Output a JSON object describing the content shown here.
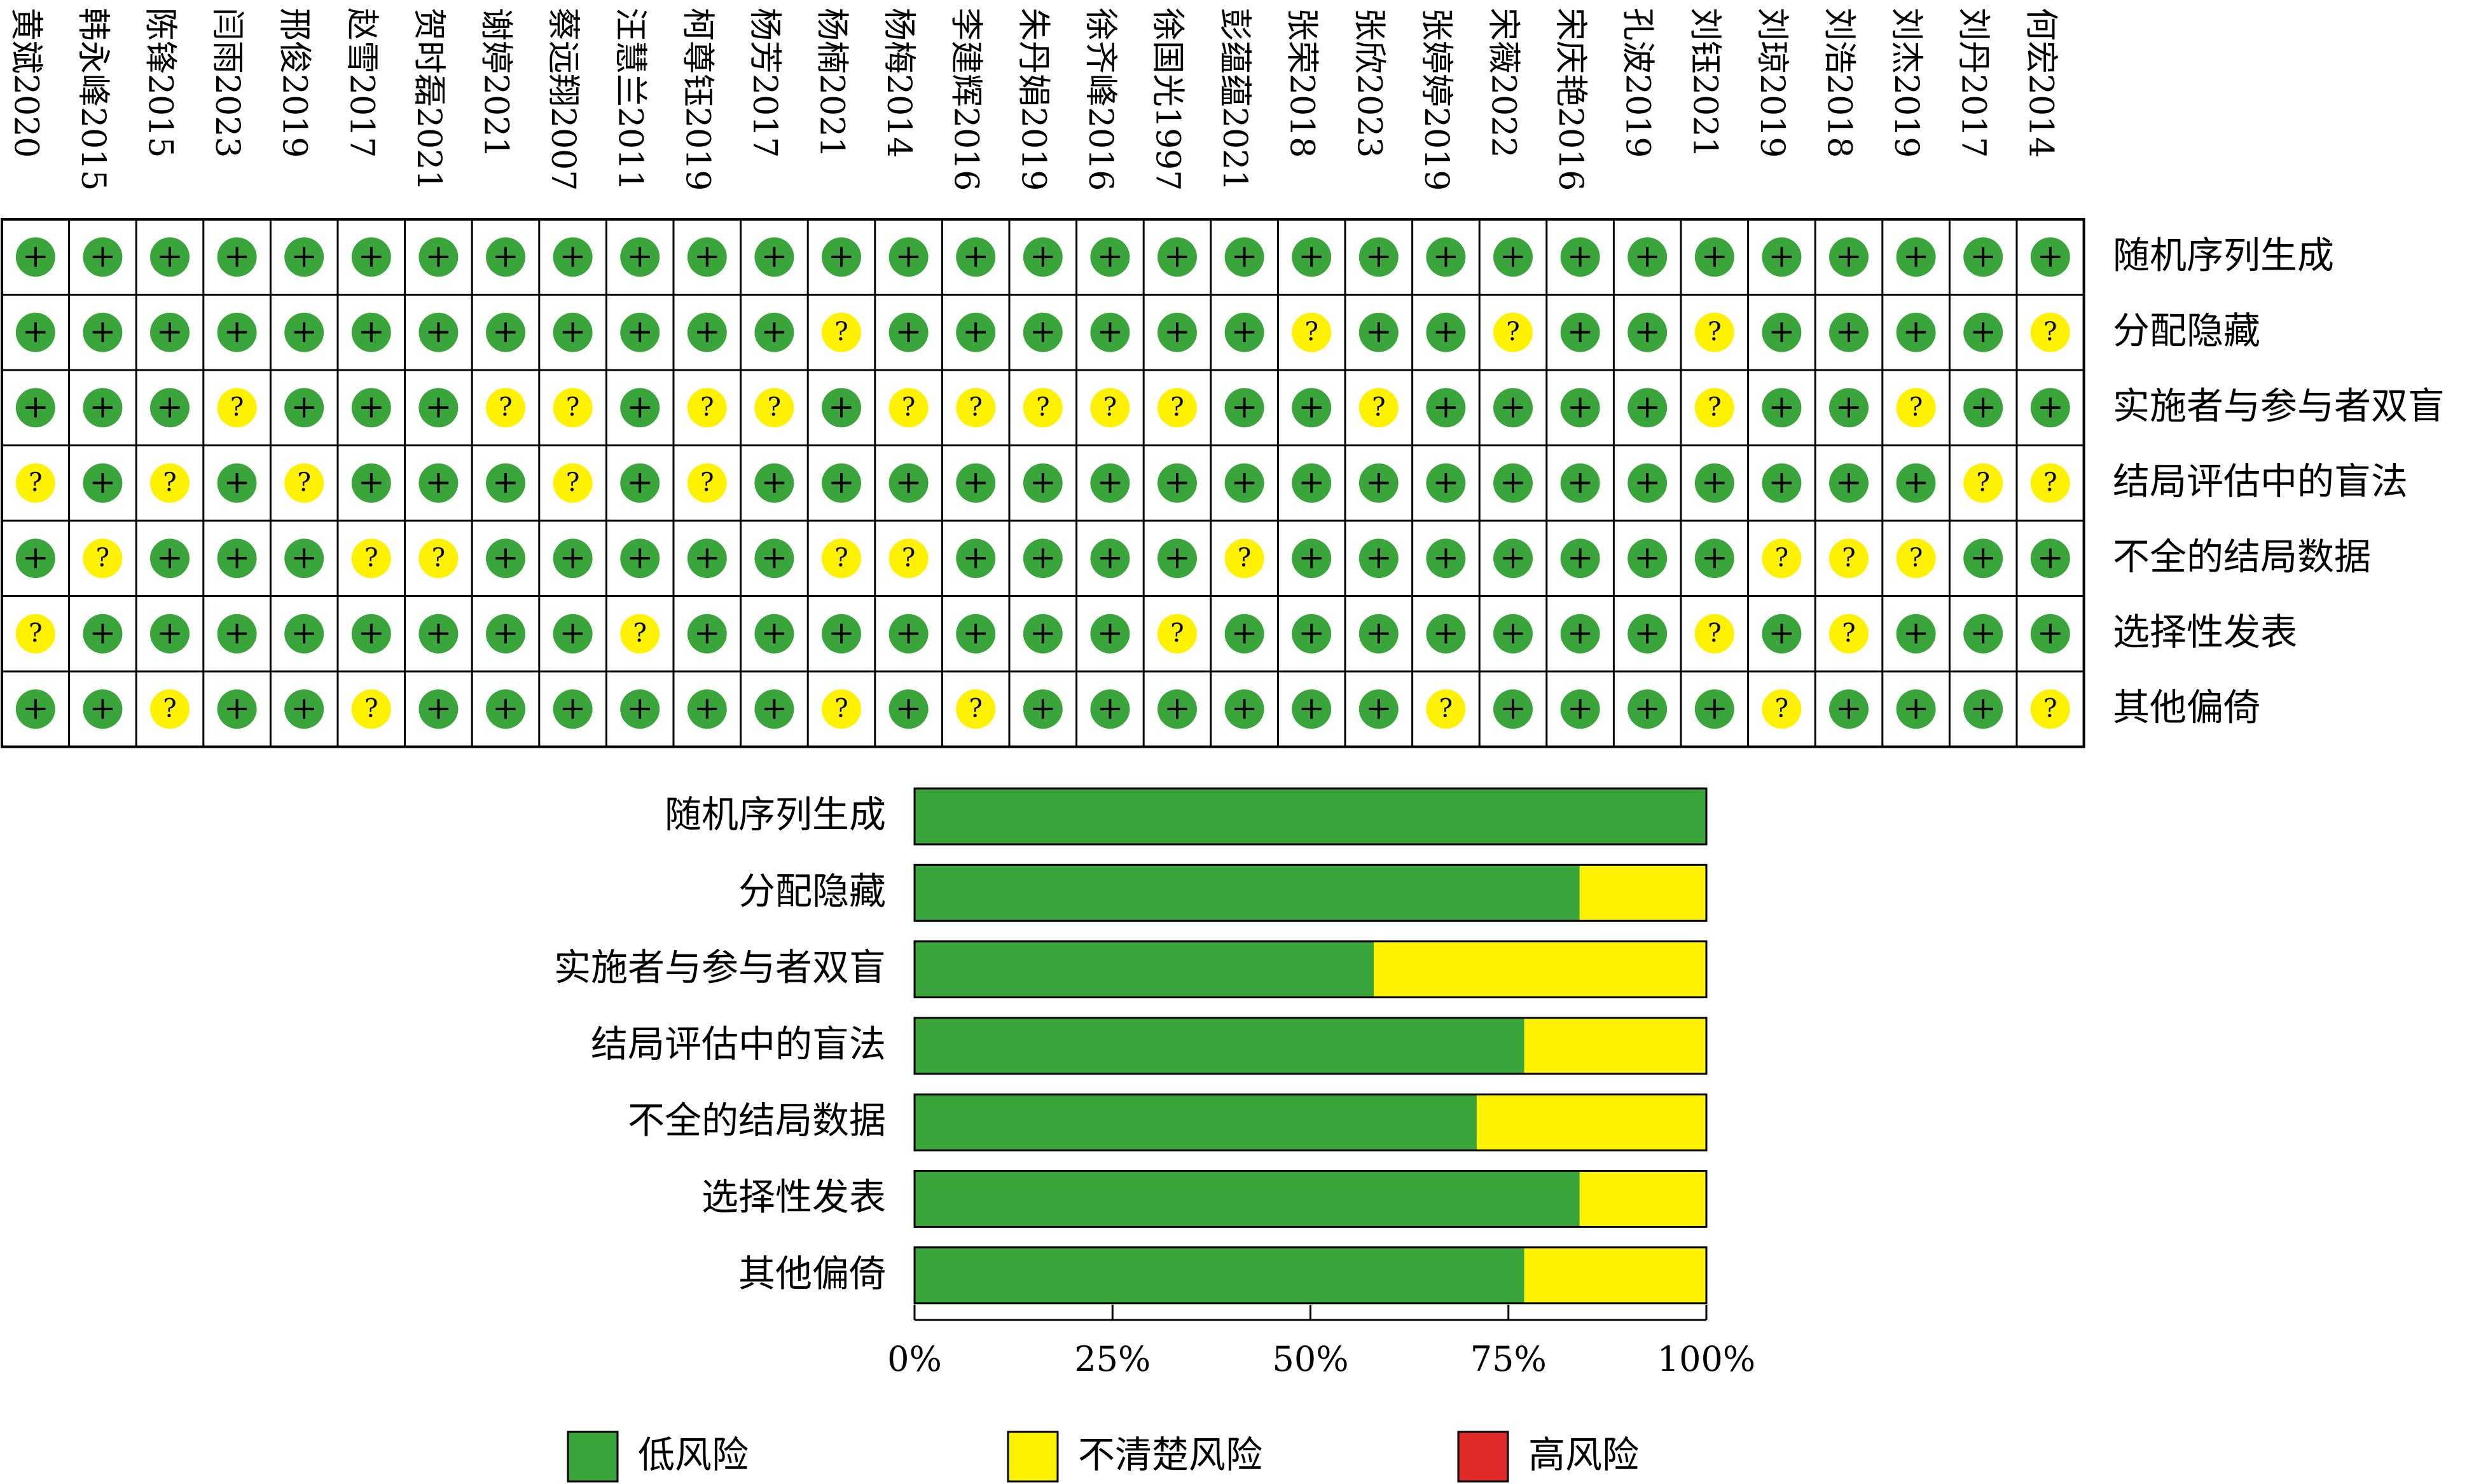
{
  "chart_data": [
    {
      "type": "table",
      "studies": [
        "黄斌2020",
        "韩永峰2015",
        "陈锋2015",
        "闫雨2023",
        "邢俊2019",
        "赵雪2017",
        "贺时磊2021",
        "谢婷2021",
        "蔡远翔2007",
        "汪慧兰2011",
        "柯尊钰2019",
        "杨芳2017",
        "杨楠2021",
        "杨梅2014",
        "李建辉2016",
        "朱丹娟2019",
        "徐齐峰2016",
        "徐国光1997",
        "彭蕴蕴2021",
        "张荣2018",
        "张欣2023",
        "张婷婷2019",
        "宋薇2022",
        "宋庆艳2016",
        "孔波2019",
        "刘钰2021",
        "刘琼2019",
        "刘浩2018",
        "刘杰2019",
        "刘丹2017",
        "何宏2014"
      ],
      "domains": [
        "随机序列生成",
        "分配隐藏",
        "实施者与参与者双盲",
        "结局评估中的盲法",
        "不全的结局数据",
        "选择性发表",
        "其他偏倚"
      ],
      "symbols": {
        "L": "+",
        "U": "?"
      },
      "judgments": [
        [
          "L",
          "L",
          "L",
          "L",
          "L",
          "L",
          "L",
          "L",
          "L",
          "L",
          "L",
          "L",
          "L",
          "L",
          "L",
          "L",
          "L",
          "L",
          "L",
          "L",
          "L",
          "L",
          "L",
          "L",
          "L",
          "L",
          "L",
          "L",
          "L",
          "L",
          "L"
        ],
        [
          "L",
          "L",
          "L",
          "L",
          "L",
          "L",
          "L",
          "L",
          "L",
          "L",
          "L",
          "L",
          "U",
          "L",
          "L",
          "L",
          "L",
          "L",
          "L",
          "U",
          "L",
          "L",
          "U",
          "L",
          "L",
          "U",
          "L",
          "L",
          "L",
          "L",
          "U"
        ],
        [
          "L",
          "L",
          "L",
          "U",
          "L",
          "L",
          "L",
          "U",
          "U",
          "L",
          "U",
          "U",
          "L",
          "U",
          "U",
          "U",
          "U",
          "U",
          "L",
          "L",
          "U",
          "L",
          "L",
          "L",
          "L",
          "U",
          "L",
          "L",
          "U",
          "L",
          "L"
        ],
        [
          "U",
          "L",
          "U",
          "L",
          "U",
          "L",
          "L",
          "L",
          "U",
          "L",
          "U",
          "L",
          "L",
          "L",
          "L",
          "L",
          "L",
          "L",
          "L",
          "L",
          "L",
          "L",
          "L",
          "L",
          "L",
          "L",
          "L",
          "L",
          "L",
          "U",
          "U"
        ],
        [
          "L",
          "U",
          "L",
          "L",
          "L",
          "U",
          "U",
          "L",
          "L",
          "L",
          "L",
          "L",
          "U",
          "U",
          "L",
          "L",
          "L",
          "L",
          "U",
          "L",
          "L",
          "L",
          "L",
          "L",
          "L",
          "L",
          "U",
          "U",
          "U",
          "L",
          "L"
        ],
        [
          "U",
          "L",
          "L",
          "L",
          "L",
          "L",
          "L",
          "L",
          "L",
          "U",
          "L",
          "L",
          "L",
          "L",
          "L",
          "L",
          "L",
          "U",
          "L",
          "L",
          "L",
          "L",
          "L",
          "L",
          "L",
          "U",
          "L",
          "U",
          "L",
          "L",
          "L"
        ],
        [
          "L",
          "L",
          "U",
          "L",
          "L",
          "U",
          "L",
          "L",
          "L",
          "L",
          "L",
          "L",
          "U",
          "L",
          "U",
          "L",
          "L",
          "L",
          "L",
          "L",
          "L",
          "U",
          "L",
          "L",
          "L",
          "L",
          "U",
          "L",
          "L",
          "L",
          "U"
        ]
      ]
    },
    {
      "type": "bar",
      "orientation": "horizontal",
      "stacked": true,
      "categories": [
        "随机序列生成",
        "分配隐藏",
        "实施者与参与者双盲",
        "结局评估中的盲法",
        "不全的结局数据",
        "选择性发表",
        "其他偏倚"
      ],
      "series": [
        {
          "name": "低风险",
          "color": "#3aa53a",
          "values": [
            100,
            84,
            58,
            77,
            71,
            84,
            77
          ]
        },
        {
          "name": "不清楚风险",
          "color": "#fff200",
          "values": [
            0,
            16,
            42,
            23,
            29,
            16,
            23
          ]
        },
        {
          "name": "高风险",
          "color": "#e02a27",
          "values": [
            0,
            0,
            0,
            0,
            0,
            0,
            0
          ]
        }
      ],
      "xlim": [
        0,
        100
      ],
      "xticks": [
        "0%",
        "25%",
        "50%",
        "75%",
        "100%"
      ],
      "legend_position": "bottom"
    }
  ],
  "colors": {
    "low": "#3aa53a",
    "unclear": "#fff200",
    "high": "#e02a27",
    "border": "#000000"
  }
}
